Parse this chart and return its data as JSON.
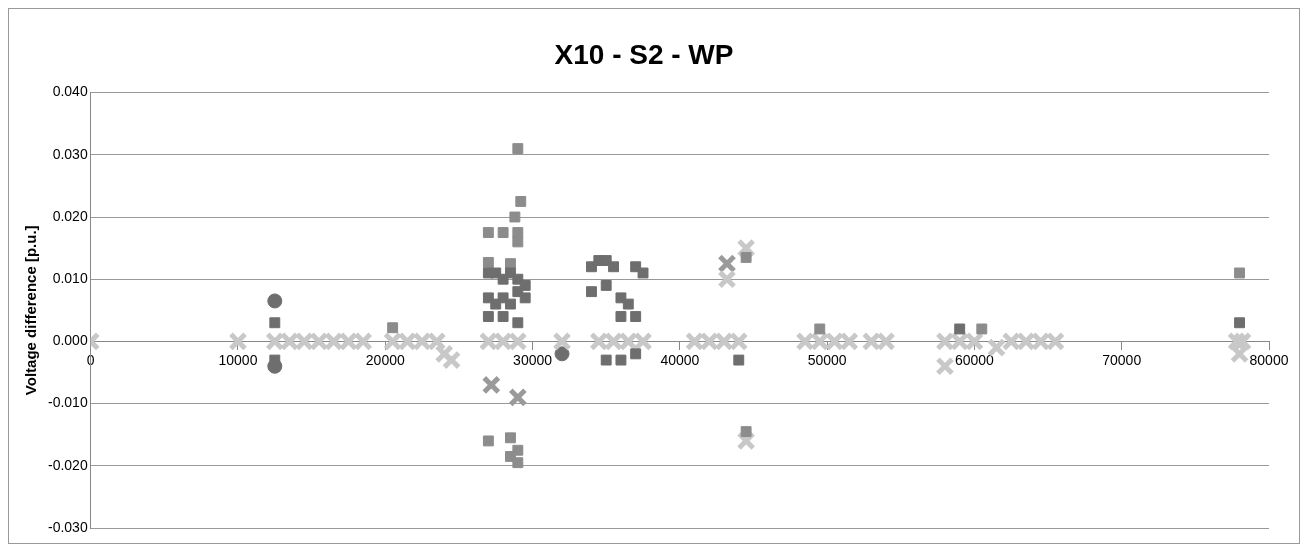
{
  "chart_data": {
    "type": "scatter",
    "title": "X10 - S2 - WP",
    "ylabel": "Voltage difference [p.u.]",
    "xlim": [
      0,
      80000
    ],
    "xticks": [
      0,
      10000,
      20000,
      30000,
      40000,
      50000,
      60000,
      70000,
      80000
    ],
    "ylim": [
      -0.03,
      0.04
    ],
    "yticks": [
      {
        "value": -0.03,
        "label": "-0.030"
      },
      {
        "value": -0.02,
        "label": "-0.020"
      },
      {
        "value": -0.01,
        "label": "-0.010"
      },
      {
        "value": 0,
        "label": "0.000"
      },
      {
        "value": 0.01,
        "label": "0.010"
      },
      {
        "value": 0.02,
        "label": "0.020"
      },
      {
        "value": 0.03,
        "label": "0.030"
      },
      {
        "value": 0.04,
        "label": "0.040"
      }
    ],
    "grid": "y",
    "legend": false,
    "series": [
      {
        "color": "#6e6e6e",
        "marker": "square",
        "x": [
          12500,
          27000,
          27500,
          28000,
          28500,
          29000,
          29500,
          27000,
          27500,
          28000,
          28500,
          29000,
          29500,
          27000,
          28000,
          29000,
          34000,
          34500,
          35000,
          35500,
          36000,
          36500,
          37000,
          37500,
          34000,
          35000,
          36000,
          37000,
          35000,
          36000,
          37000,
          12500,
          44000,
          59000,
          78000
        ],
        "values": [
          0.003,
          0.011,
          0.011,
          0.01,
          0.011,
          0.01,
          0.009,
          0.007,
          0.006,
          0.007,
          0.006,
          0.008,
          0.007,
          0.004,
          0.004,
          0.003,
          0.012,
          0.013,
          0.013,
          0.012,
          0.007,
          0.006,
          0.012,
          0.011,
          0.008,
          0.009,
          0.004,
          0.004,
          -0.003,
          -0.003,
          -0.002,
          -0.003,
          -0.003,
          0.002,
          0.003
        ]
      },
      {
        "color": "#8c8c8c",
        "marker": "square",
        "x": [
          29000,
          29200,
          28800,
          29000,
          27000,
          28000,
          29000,
          27000,
          28500,
          27000,
          28500,
          29000,
          28500,
          29000,
          78000,
          44500,
          44500,
          20500,
          49500,
          60500
        ],
        "values": [
          0.031,
          0.0225,
          0.02,
          0.0175,
          0.0175,
          0.0175,
          0.016,
          0.0127,
          0.0125,
          -0.016,
          -0.0155,
          -0.0175,
          -0.0185,
          -0.0195,
          0.011,
          0.0135,
          -0.0145,
          0.0022,
          0.002,
          0.002
        ]
      },
      {
        "color": "#c8c8c8",
        "marker": "cross",
        "x": [
          0,
          10000,
          12500,
          13500,
          14500,
          15500,
          16500,
          17500,
          18500,
          20500,
          21500,
          22500,
          23500,
          24000,
          24500,
          27000,
          28000,
          29000,
          32000,
          34500,
          35500,
          36500,
          37500,
          41000,
          42000,
          43000,
          44000,
          43200,
          44500,
          44500,
          48500,
          49500,
          50500,
          51500,
          53000,
          54000,
          58000,
          58000,
          59000,
          60000,
          61500,
          62500,
          63500,
          64500,
          65500,
          77800,
          78200,
          78000
        ],
        "values": [
          0,
          0,
          0,
          0,
          0,
          0,
          0,
          0,
          0,
          0,
          0,
          0,
          0,
          -0.002,
          -0.003,
          0,
          0,
          0,
          0,
          0,
          0,
          0,
          0,
          0,
          0,
          0,
          0,
          0.01,
          0.015,
          -0.016,
          0,
          0,
          0,
          0,
          0,
          0,
          0,
          -0.004,
          0,
          0,
          -0.001,
          0,
          0,
          0,
          0,
          0,
          0,
          -0.002
        ]
      },
      {
        "color": "#6e6e6e",
        "marker": "circle",
        "x": [
          12500,
          12500,
          32000
        ],
        "values": [
          0.0065,
          -0.004,
          -0.002
        ]
      },
      {
        "color": "#9a9a9a",
        "marker": "cross",
        "x": [
          27200,
          29000,
          43200
        ],
        "values": [
          -0.007,
          -0.009,
          0.0125
        ]
      }
    ]
  }
}
